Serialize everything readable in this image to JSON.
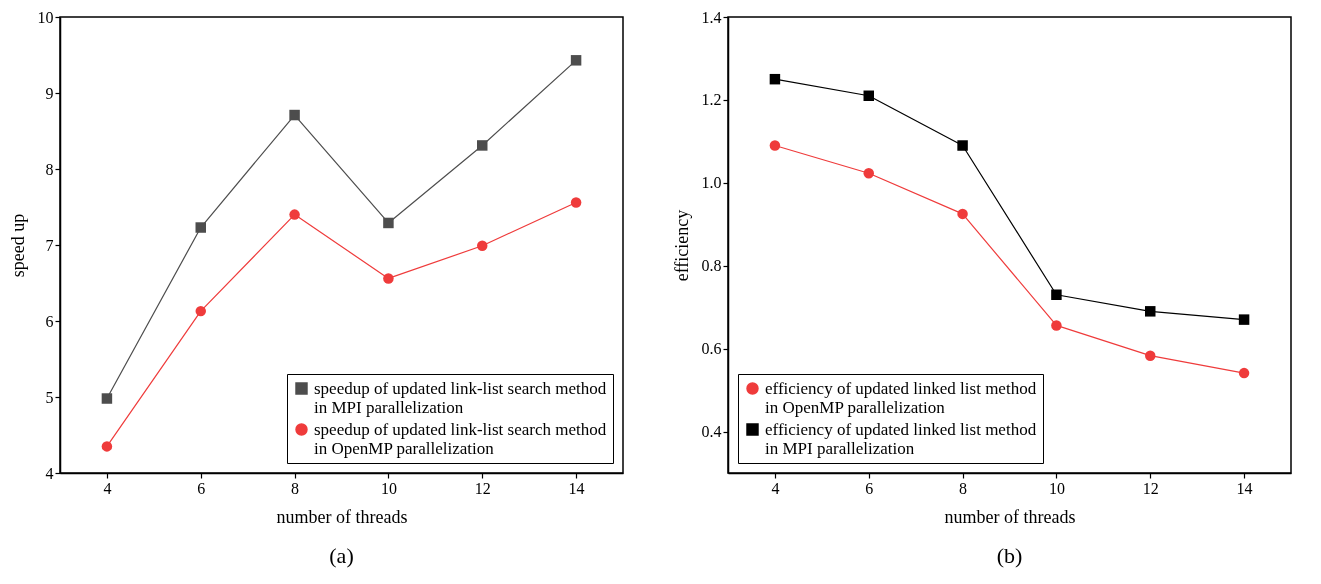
{
  "chart_data": [
    {
      "type": "line",
      "title": "(a)",
      "xlabel": "number of threads",
      "ylabel": "speed up",
      "x": [
        4,
        6,
        8,
        10,
        12,
        14
      ],
      "xlim": [
        3,
        15
      ],
      "xticks": [
        4,
        6,
        8,
        10,
        12,
        14
      ],
      "ylim": [
        4,
        10
      ],
      "yticks": [
        4,
        5,
        6,
        7,
        8,
        9,
        10
      ],
      "grid": false,
      "legend": "bottom right",
      "series": [
        {
          "name": "speedup of updated link-list search method in MPI parallelization",
          "color": "#4d4d4d",
          "marker": "square",
          "values": [
            4.98,
            7.23,
            8.71,
            7.29,
            8.31,
            9.43
          ]
        },
        {
          "name": "speedup of updated link-list search method in OpenMP parallelization",
          "color": "#ef3b3b",
          "marker": "circle",
          "values": [
            4.35,
            6.13,
            7.4,
            6.56,
            6.99,
            7.56
          ]
        }
      ]
    },
    {
      "type": "line",
      "title": "(b)",
      "xlabel": "number of threads",
      "ylabel": "efficiency",
      "x": [
        4,
        6,
        8,
        10,
        12,
        14
      ],
      "xlim": [
        3,
        15
      ],
      "xticks": [
        4,
        6,
        8,
        10,
        12,
        14
      ],
      "ylim": [
        0.3,
        1.4
      ],
      "yticks": [
        {
          "value": 0.4,
          "label": "0.4"
        },
        {
          "value": 0.6,
          "label": "0.6"
        },
        {
          "value": 0.8,
          "label": "0.8"
        },
        {
          "value": 1.0,
          "label": "1.0"
        },
        {
          "value": 1.2,
          "label": "1.2"
        },
        {
          "value": 1.4,
          "label": "1.4"
        }
      ],
      "grid": false,
      "legend": "bottom left",
      "series": [
        {
          "name": "efficiency of updated linked list method in OpenMP parallelization",
          "color": "#ef3b3b",
          "marker": "circle",
          "values": [
            1.09,
            1.023,
            0.925,
            0.656,
            0.583,
            0.541
          ]
        },
        {
          "name": "efficiency of updated linked list method in MPI parallelization",
          "color": "#000000",
          "marker": "square",
          "values": [
            1.25,
            1.21,
            1.09,
            0.73,
            0.69,
            0.67
          ]
        }
      ]
    }
  ]
}
